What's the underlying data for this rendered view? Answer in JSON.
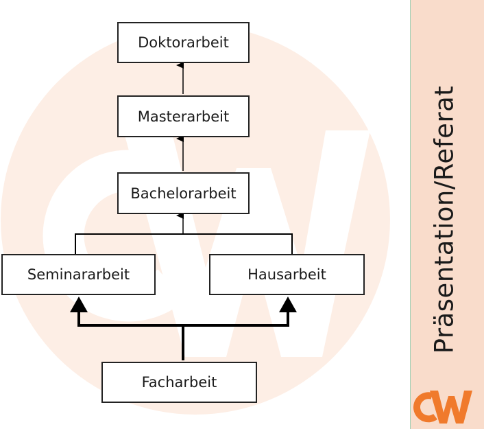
{
  "nodes": {
    "doktorarbeit": "Doktorarbeit",
    "masterarbeit": "Masterarbeit",
    "bachelorarbeit": "Bachelorarbeit",
    "seminararbeit": "Seminararbeit",
    "hausarbeit": "Hausarbeit",
    "facharbeit": "Facharbeit"
  },
  "sidebar": {
    "title": "Präsentation/Referat",
    "logo_icon": "gw-logo",
    "logo_text": "GW"
  },
  "watermark": {
    "logo_icon": "gw-logo-watermark"
  },
  "colors": {
    "accent": "#f07a2c",
    "sidebar_bg": "#f9dccb",
    "watermark": "#fdeee5"
  }
}
